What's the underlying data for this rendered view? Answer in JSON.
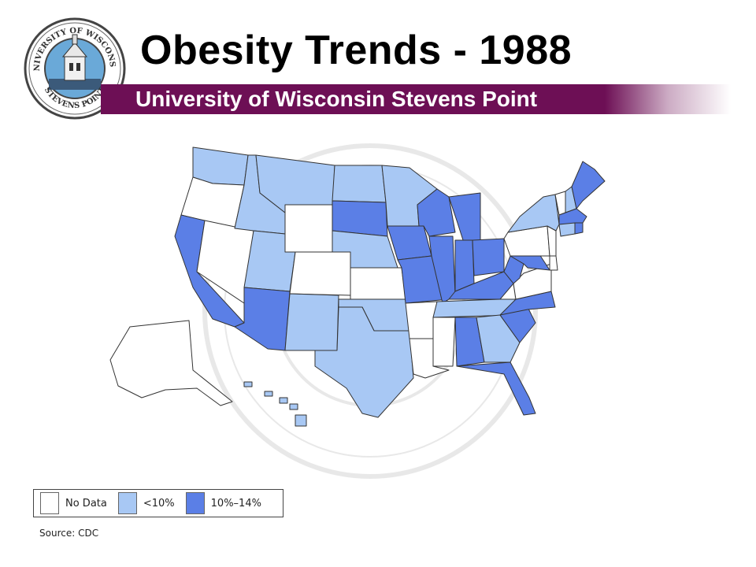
{
  "header": {
    "title": "Obesity Trends - 1988",
    "subtitle": "University of Wisconsin Stevens Point"
  },
  "seal": {
    "top_text": "UNIVERSITY OF WISCONSIN",
    "bottom_text": "STEVENS POINT"
  },
  "legend": {
    "items": [
      {
        "label": "No Data",
        "color": "#ffffff"
      },
      {
        "label": "<10%",
        "color": "#a8c8f4"
      },
      {
        "label": "10%–14%",
        "color": "#5b7fe6"
      }
    ]
  },
  "source": "Source: CDC",
  "colors": {
    "no_data": "#ffffff",
    "lt10": "#a8c8f4",
    "p10_14": "#5b7fe6",
    "band": "#6d0f55",
    "outline": "#333333"
  },
  "map": {
    "states": [
      {
        "name": "WA",
        "category": "lt10"
      },
      {
        "name": "OR",
        "category": "no_data"
      },
      {
        "name": "CA",
        "category": "p10_14"
      },
      {
        "name": "NV",
        "category": "no_data"
      },
      {
        "name": "ID",
        "category": "lt10"
      },
      {
        "name": "MT",
        "category": "lt10"
      },
      {
        "name": "WY",
        "category": "no_data"
      },
      {
        "name": "UT",
        "category": "lt10"
      },
      {
        "name": "CO",
        "category": "no_data"
      },
      {
        "name": "AZ",
        "category": "p10_14"
      },
      {
        "name": "NM",
        "category": "lt10"
      },
      {
        "name": "ND",
        "category": "lt10"
      },
      {
        "name": "SD",
        "category": "p10_14"
      },
      {
        "name": "NE",
        "category": "lt10"
      },
      {
        "name": "KS",
        "category": "no_data"
      },
      {
        "name": "OK",
        "category": "lt10"
      },
      {
        "name": "TX",
        "category": "lt10"
      },
      {
        "name": "MN",
        "category": "lt10"
      },
      {
        "name": "IA",
        "category": "p10_14"
      },
      {
        "name": "MO",
        "category": "p10_14"
      },
      {
        "name": "AR",
        "category": "no_data"
      },
      {
        "name": "LA",
        "category": "no_data"
      },
      {
        "name": "WI",
        "category": "p10_14"
      },
      {
        "name": "IL",
        "category": "p10_14"
      },
      {
        "name": "MI",
        "category": "p10_14"
      },
      {
        "name": "IN",
        "category": "p10_14"
      },
      {
        "name": "OH",
        "category": "p10_14"
      },
      {
        "name": "KY",
        "category": "p10_14"
      },
      {
        "name": "TN",
        "category": "lt10"
      },
      {
        "name": "MS",
        "category": "no_data"
      },
      {
        "name": "AL",
        "category": "p10_14"
      },
      {
        "name": "GA",
        "category": "lt10"
      },
      {
        "name": "FL",
        "category": "p10_14"
      },
      {
        "name": "SC",
        "category": "p10_14"
      },
      {
        "name": "NC",
        "category": "p10_14"
      },
      {
        "name": "VA",
        "category": "no_data"
      },
      {
        "name": "WV",
        "category": "p10_14"
      },
      {
        "name": "MD",
        "category": "p10_14"
      },
      {
        "name": "DE",
        "category": "no_data"
      },
      {
        "name": "NJ",
        "category": "no_data"
      },
      {
        "name": "PA",
        "category": "no_data"
      },
      {
        "name": "NY",
        "category": "lt10"
      },
      {
        "name": "VT",
        "category": "no_data"
      },
      {
        "name": "NH",
        "category": "lt10"
      },
      {
        "name": "ME",
        "category": "p10_14"
      },
      {
        "name": "MA",
        "category": "p10_14"
      },
      {
        "name": "CT",
        "category": "lt10"
      },
      {
        "name": "RI",
        "category": "p10_14"
      },
      {
        "name": "AK",
        "category": "no_data"
      },
      {
        "name": "HI",
        "category": "lt10"
      }
    ]
  }
}
